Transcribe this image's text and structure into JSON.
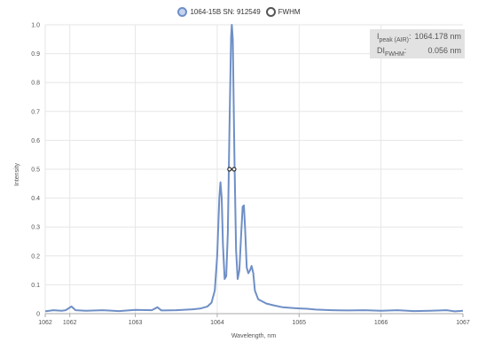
{
  "legend": {
    "spectrum_label": "1064-15B SN: 912549",
    "fwhm_label": "FWHM"
  },
  "info": {
    "peak_label_main": "I",
    "peak_label_sub": "peak (AIR)",
    "peak_label_colon": ":",
    "peak_value": "1064.178 nm",
    "fwhm_label_main": "DI",
    "fwhm_label_sub": "FWHM",
    "fwhm_label_colon": ":",
    "fwhm_value": "0.056 nm"
  },
  "chart_data": {
    "type": "line",
    "xlabel": "Wavelength, nm",
    "ylabel": "Intensity",
    "xlim": [
      1061.9,
      1067.0
    ],
    "ylim": [
      0,
      1.0
    ],
    "grid": true,
    "legend_position": "top-center",
    "colors": {
      "spectrum": "#6f8fc6",
      "fwhm": "#333333",
      "grid": "#e6e6e6"
    },
    "x_ticks": [
      {
        "value": 1061.9,
        "label": "1062"
      },
      {
        "value": 1062.2,
        "label": "1062"
      },
      {
        "value": 1063.0,
        "label": "1063"
      },
      {
        "value": 1064.0,
        "label": "1064"
      },
      {
        "value": 1065.0,
        "label": "1065"
      },
      {
        "value": 1066.0,
        "label": "1066"
      },
      {
        "value": 1067.0,
        "label": "1067"
      }
    ],
    "y_ticks": [
      {
        "value": 0,
        "label": "0"
      },
      {
        "value": 0.1,
        "label": "0.1"
      },
      {
        "value": 0.2,
        "label": "0.2"
      },
      {
        "value": 0.3,
        "label": "0.3"
      },
      {
        "value": 0.4,
        "label": "0.4"
      },
      {
        "value": 0.5,
        "label": "0.5"
      },
      {
        "value": 0.6,
        "label": "0.6"
      },
      {
        "value": 0.7,
        "label": "0.7"
      },
      {
        "value": 0.8,
        "label": "0.8"
      },
      {
        "value": 0.9,
        "label": "0.9"
      },
      {
        "value": 1.0,
        "label": "1.0"
      }
    ],
    "series": [
      {
        "name": "1064-15B SN: 912549",
        "points": [
          [
            1061.9,
            0.008
          ],
          [
            1062.0,
            0.012
          ],
          [
            1062.1,
            0.01
          ],
          [
            1062.15,
            0.012
          ],
          [
            1062.22,
            0.025
          ],
          [
            1062.27,
            0.012
          ],
          [
            1062.4,
            0.01
          ],
          [
            1062.6,
            0.012
          ],
          [
            1062.8,
            0.009
          ],
          [
            1063.0,
            0.013
          ],
          [
            1063.2,
            0.012
          ],
          [
            1063.27,
            0.022
          ],
          [
            1063.32,
            0.011
          ],
          [
            1063.5,
            0.012
          ],
          [
            1063.7,
            0.015
          ],
          [
            1063.8,
            0.018
          ],
          [
            1063.88,
            0.025
          ],
          [
            1063.93,
            0.038
          ],
          [
            1063.97,
            0.08
          ],
          [
            1064.0,
            0.2
          ],
          [
            1064.025,
            0.4
          ],
          [
            1064.04,
            0.455
          ],
          [
            1064.055,
            0.4
          ],
          [
            1064.07,
            0.24
          ],
          [
            1064.09,
            0.12
          ],
          [
            1064.11,
            0.13
          ],
          [
            1064.13,
            0.28
          ],
          [
            1064.15,
            0.65
          ],
          [
            1064.17,
            0.96
          ],
          [
            1064.178,
            1.0
          ],
          [
            1064.19,
            0.95
          ],
          [
            1064.21,
            0.55
          ],
          [
            1064.23,
            0.22
          ],
          [
            1064.25,
            0.12
          ],
          [
            1064.27,
            0.15
          ],
          [
            1064.29,
            0.26
          ],
          [
            1064.31,
            0.37
          ],
          [
            1064.325,
            0.375
          ],
          [
            1064.34,
            0.3
          ],
          [
            1064.36,
            0.16
          ],
          [
            1064.38,
            0.14
          ],
          [
            1064.4,
            0.15
          ],
          [
            1064.42,
            0.165
          ],
          [
            1064.44,
            0.14
          ],
          [
            1064.46,
            0.08
          ],
          [
            1064.5,
            0.05
          ],
          [
            1064.6,
            0.035
          ],
          [
            1064.7,
            0.028
          ],
          [
            1064.8,
            0.022
          ],
          [
            1064.9,
            0.02
          ],
          [
            1065.0,
            0.018
          ],
          [
            1065.1,
            0.017
          ],
          [
            1065.2,
            0.014
          ],
          [
            1065.3,
            0.013
          ],
          [
            1065.4,
            0.012
          ],
          [
            1065.6,
            0.011
          ],
          [
            1065.8,
            0.012
          ],
          [
            1066.0,
            0.01
          ],
          [
            1066.2,
            0.012
          ],
          [
            1066.4,
            0.009
          ],
          [
            1066.6,
            0.01
          ],
          [
            1066.8,
            0.012
          ],
          [
            1066.9,
            0.008
          ],
          [
            1067.0,
            0.01
          ]
        ]
      },
      {
        "name": "FWHM",
        "points": [
          [
            1064.15,
            0.5
          ],
          [
            1064.206,
            0.5
          ]
        ]
      }
    ]
  }
}
